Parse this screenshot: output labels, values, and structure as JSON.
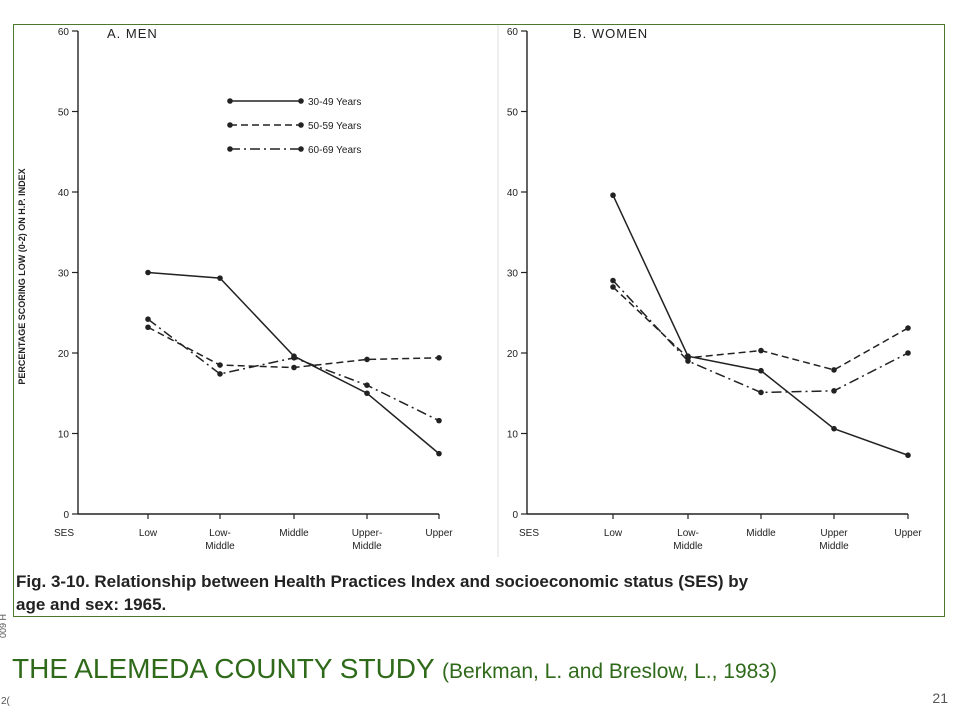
{
  "slide": {
    "title": "THE ALEMEDA COUNTY STUDY",
    "citation": "(Berkman, L. and Breslow, L., 1983)",
    "page_number": "21",
    "side_note": "009 H",
    "side_note_bottom": "2("
  },
  "figure": {
    "caption_line1": "Fig. 3-10.  Relationship between Health Practices Index and socioeconomic status (SES) by",
    "caption_line2": "age and sex: 1965."
  },
  "colors": {
    "accent": "#2f6a1a",
    "frame": "#4a7a2a",
    "ink": "#222222"
  },
  "chart_data": [
    {
      "type": "line",
      "title": "A. MEN",
      "ylabel": "PERCENTAGE SCORING LOW (0-2) ON H.P. INDEX",
      "xlabel": "",
      "ylim": [
        0,
        60
      ],
      "yticks": [
        0,
        10,
        20,
        30,
        40,
        50,
        60
      ],
      "x_origin_label": "SES",
      "categories": [
        "Low",
        "Low-\nMiddle",
        "Middle",
        "Upper-\nMiddle",
        "Upper"
      ],
      "legend_position": "top-center",
      "series": [
        {
          "name": "30-49 Years",
          "style": "solid",
          "values": [
            30,
            29.3,
            19.6,
            15,
            7.5
          ]
        },
        {
          "name": "50-59 Years",
          "style": "dashed",
          "values": [
            23.2,
            18.5,
            18.2,
            19.2,
            19.4
          ]
        },
        {
          "name": "60-69 Years",
          "style": "dashdot",
          "values": [
            24.2,
            17.4,
            19.4,
            16,
            11.6
          ]
        }
      ]
    },
    {
      "type": "line",
      "title": "B. WOMEN",
      "ylabel": "",
      "xlabel": "",
      "ylim": [
        0,
        60
      ],
      "yticks": [
        0,
        10,
        20,
        30,
        40,
        50,
        60
      ],
      "x_origin_label": "SES",
      "categories": [
        "Low",
        "Low-\nMiddle",
        "Middle",
        "Upper\nMiddle",
        "Upper"
      ],
      "series": [
        {
          "name": "30-49 Years",
          "style": "solid",
          "values": [
            39.6,
            19.6,
            17.8,
            10.6,
            7.3
          ]
        },
        {
          "name": "50-59 Years",
          "style": "dashed",
          "values": [
            28.2,
            19.4,
            20.3,
            17.9,
            23.1
          ]
        },
        {
          "name": "60-69 Years",
          "style": "dashdot",
          "values": [
            29,
            19,
            15.1,
            15.3,
            20
          ]
        }
      ]
    }
  ]
}
